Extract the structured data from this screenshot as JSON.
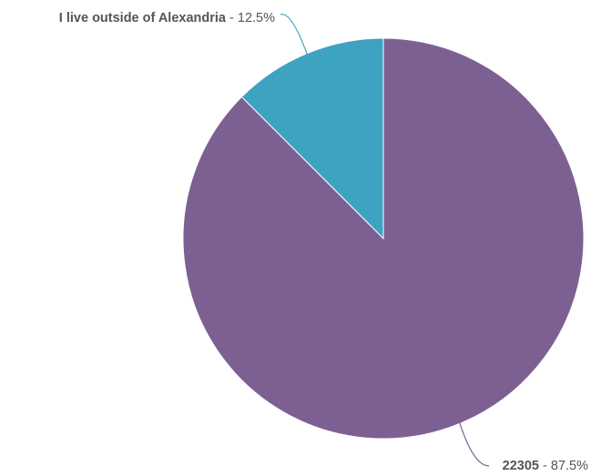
{
  "chart_data": {
    "type": "pie",
    "slices": [
      {
        "label": "22305",
        "percent_label": "87.5%",
        "value": 87.5,
        "color": "#7d6092"
      },
      {
        "label": "I live outside of Alexandria",
        "percent_label": "12.5%",
        "value": 12.5,
        "color": "#3ea2c1"
      }
    ],
    "separator": " - "
  }
}
